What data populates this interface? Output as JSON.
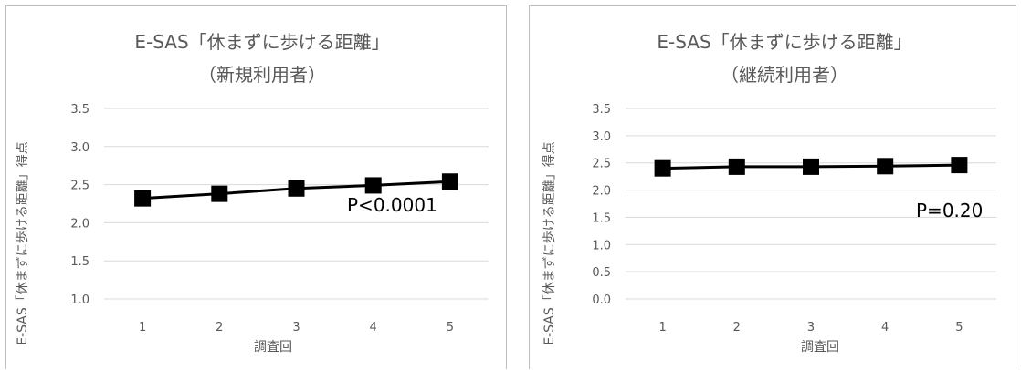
{
  "chart_data": [
    {
      "type": "line",
      "title": "E-SAS「休まずに歩ける距離」",
      "subtitle": "（新規利用者）",
      "xlabel": "調査回",
      "ylabel": "E-SAS「休まずに歩ける距離」得点",
      "categories": [
        "1",
        "2",
        "3",
        "4",
        "5"
      ],
      "series": [
        {
          "values": [
            2.32,
            2.38,
            2.45,
            2.49,
            2.54
          ]
        }
      ],
      "ylim": [
        1.0,
        3.5
      ],
      "yticks": [
        "1.0",
        "1.5",
        "2.0",
        "2.5",
        "3.0",
        "3.5"
      ],
      "grid": true,
      "legend": "none",
      "annotation": "P<0.0001",
      "line_color": "#000000"
    },
    {
      "type": "line",
      "title": "E-SAS「休まずに歩ける距離」",
      "subtitle": "（継続利用者）",
      "xlabel": "調査回",
      "ylabel": "E-SAS「休まずに歩ける距離」得点",
      "categories": [
        "1",
        "2",
        "3",
        "4",
        "5"
      ],
      "series": [
        {
          "values": [
            2.4,
            2.43,
            2.43,
            2.44,
            2.46
          ]
        }
      ],
      "ylim": [
        0.0,
        3.5
      ],
      "yticks": [
        "0.0",
        "0.5",
        "1.0",
        "1.5",
        "2.0",
        "2.5",
        "3.0",
        "3.5"
      ],
      "grid": true,
      "legend": "none",
      "annotation": "P=0.20",
      "line_color": "#000000"
    }
  ]
}
